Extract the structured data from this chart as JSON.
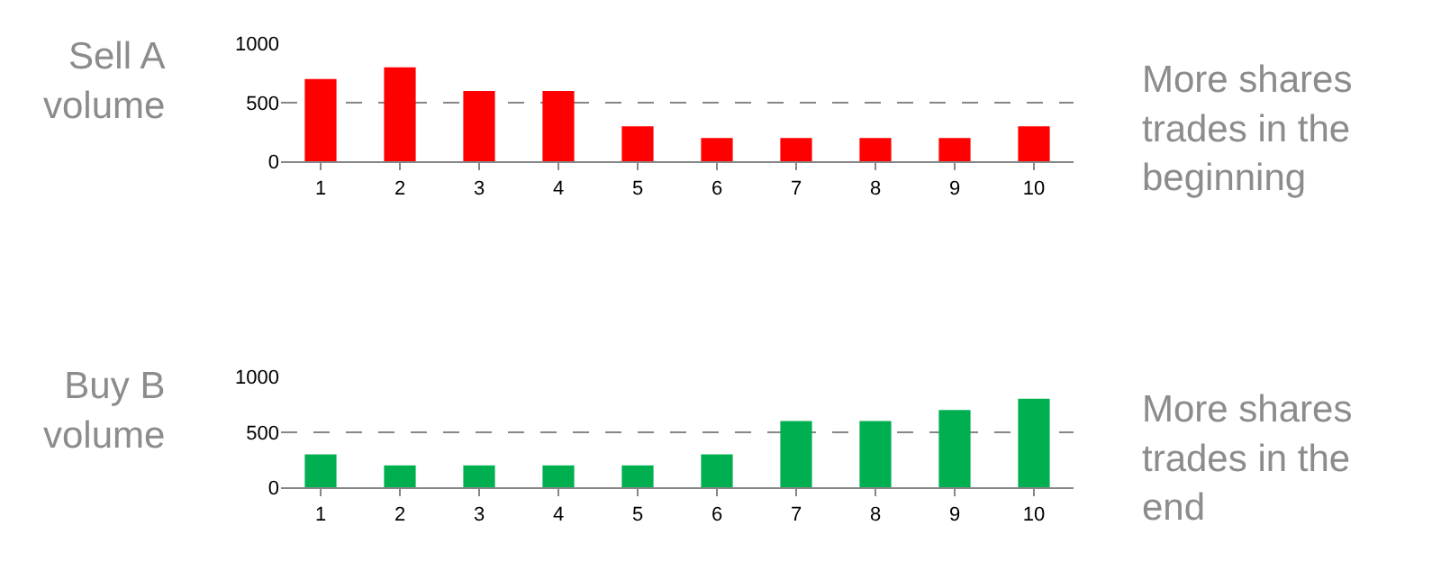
{
  "chart_data": [
    {
      "type": "bar",
      "title": "Sell A\nvolume",
      "annotations": [
        "More shares\ntrades in the\nbeginning"
      ],
      "categories": [
        "1",
        "2",
        "3",
        "4",
        "5",
        "6",
        "7",
        "8",
        "9",
        "10"
      ],
      "values": [
        700,
        800,
        600,
        600,
        300,
        200,
        200,
        200,
        200,
        300
      ],
      "color": "#ff0000",
      "ylim": [
        0,
        1000
      ],
      "yticks": [
        0,
        500,
        1000
      ],
      "grid": "y",
      "line_style": "dashed"
    },
    {
      "type": "bar",
      "title": "Buy B\nvolume",
      "annotations": [
        "More shares\ntrades in the\nend"
      ],
      "categories": [
        "1",
        "2",
        "3",
        "4",
        "5",
        "6",
        "7",
        "8",
        "9",
        "10"
      ],
      "values": [
        300,
        200,
        200,
        200,
        200,
        300,
        600,
        600,
        700,
        800
      ],
      "color": "#00b050",
      "ylim": [
        0,
        1000
      ],
      "yticks": [
        0,
        500,
        1000
      ],
      "grid": "y",
      "line_style": "dashed"
    }
  ]
}
